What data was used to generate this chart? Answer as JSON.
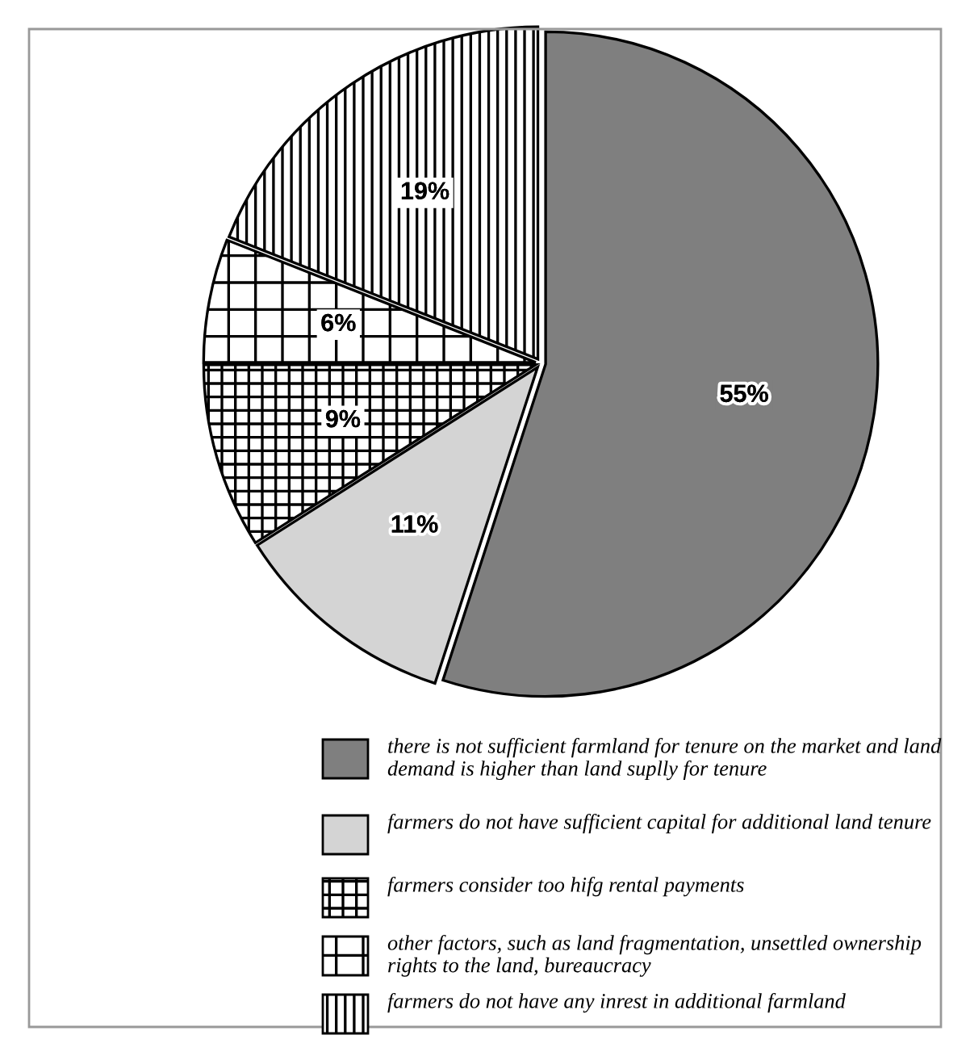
{
  "chart_data": {
    "type": "pie",
    "categories": [
      "there is not sufficient farmland for tenure on the market and land demand is higher than land suplly for tenure",
      "farmers do not have sufficient capital for additional land tenure",
      "farmers consider too hifg rental payments",
      "other factors, such as land fragmentation, unsettled ownership rights to the land, bureaucracy",
      "farmers do not have any inrest in additional farmland"
    ],
    "values": [
      55,
      11,
      9,
      6,
      19
    ],
    "colors": [
      "#7f7f7f",
      "#d4d4d4",
      "#ffffff",
      "#ffffff",
      "#ffffff"
    ],
    "value_labels": [
      "55%",
      "11%",
      "9%",
      "6%",
      "19%"
    ],
    "legend": "bottom"
  }
}
